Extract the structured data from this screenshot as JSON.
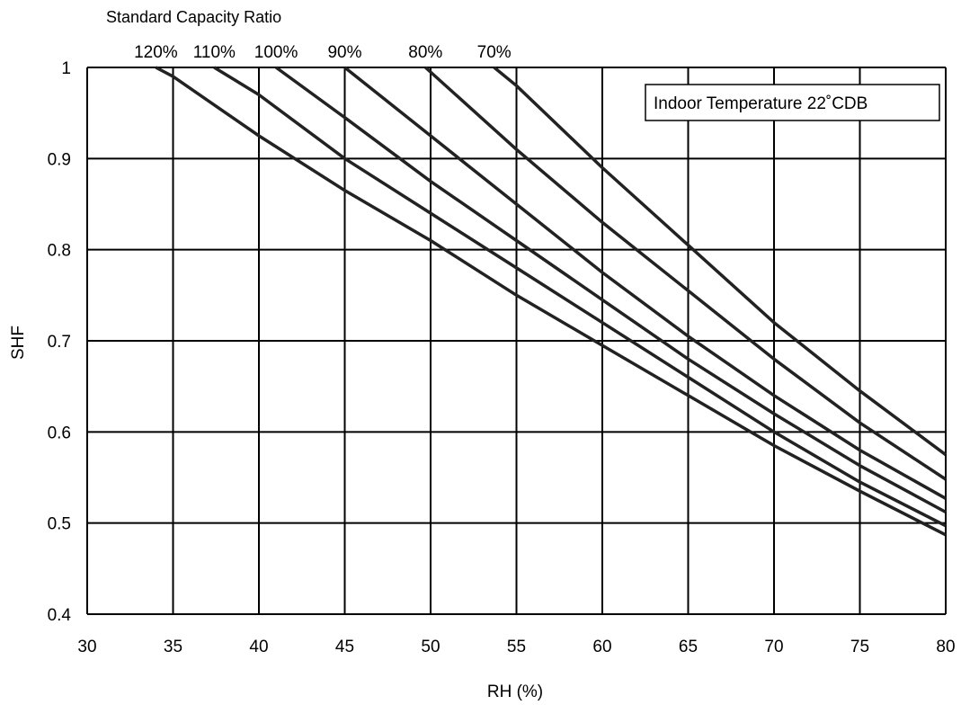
{
  "chart_data": {
    "type": "line",
    "top_title": "Standard Capacity Ratio",
    "xlabel": "RH (%)",
    "ylabel": "SHF",
    "annotation": "Indoor Temperature 22˚CDB",
    "xlim": [
      30,
      80
    ],
    "ylim": [
      0.4,
      1.0
    ],
    "x_ticks": [
      "30",
      "35",
      "40",
      "45",
      "50",
      "55",
      "60",
      "65",
      "70",
      "75",
      "80"
    ],
    "y_ticks": [
      "0.4",
      "0.5",
      "0.6",
      "0.7",
      "0.8",
      "0.9",
      "1"
    ],
    "grid": true,
    "series": [
      {
        "name": "120%",
        "x": [
          34.0,
          35.0,
          40.0,
          45.0,
          50.0,
          55.0,
          60.0,
          65.0,
          70.0,
          75.0,
          80.0
        ],
        "y": [
          1.0,
          0.99,
          0.925,
          0.865,
          0.81,
          0.75,
          0.695,
          0.64,
          0.585,
          0.535,
          0.487
        ]
      },
      {
        "name": "110%",
        "x": [
          37.4,
          40.0,
          45.0,
          50.0,
          55.0,
          60.0,
          65.0,
          70.0,
          75.0,
          80.0
        ],
        "y": [
          1.0,
          0.97,
          0.9,
          0.84,
          0.78,
          0.72,
          0.66,
          0.6,
          0.545,
          0.497
        ]
      },
      {
        "name": "100%",
        "x": [
          41.0,
          45.0,
          50.0,
          55.0,
          60.0,
          65.0,
          70.0,
          75.0,
          80.0
        ],
        "y": [
          1.0,
          0.945,
          0.875,
          0.81,
          0.745,
          0.68,
          0.62,
          0.563,
          0.512
        ]
      },
      {
        "name": "90%",
        "x": [
          45.0,
          50.0,
          55.0,
          60.0,
          65.0,
          70.0,
          75.0,
          80.0
        ],
        "y": [
          1.0,
          0.925,
          0.85,
          0.775,
          0.705,
          0.64,
          0.58,
          0.527
        ]
      },
      {
        "name": "80%",
        "x": [
          49.7,
          55.0,
          60.0,
          65.0,
          70.0,
          75.0,
          80.0
        ],
        "y": [
          1.0,
          0.91,
          0.83,
          0.755,
          0.68,
          0.61,
          0.548
        ]
      },
      {
        "name": "70%",
        "x": [
          53.7,
          55.0,
          60.0,
          65.0,
          70.0,
          75.0,
          80.0
        ],
        "y": [
          1.0,
          0.98,
          0.89,
          0.805,
          0.72,
          0.645,
          0.575
        ]
      }
    ]
  }
}
